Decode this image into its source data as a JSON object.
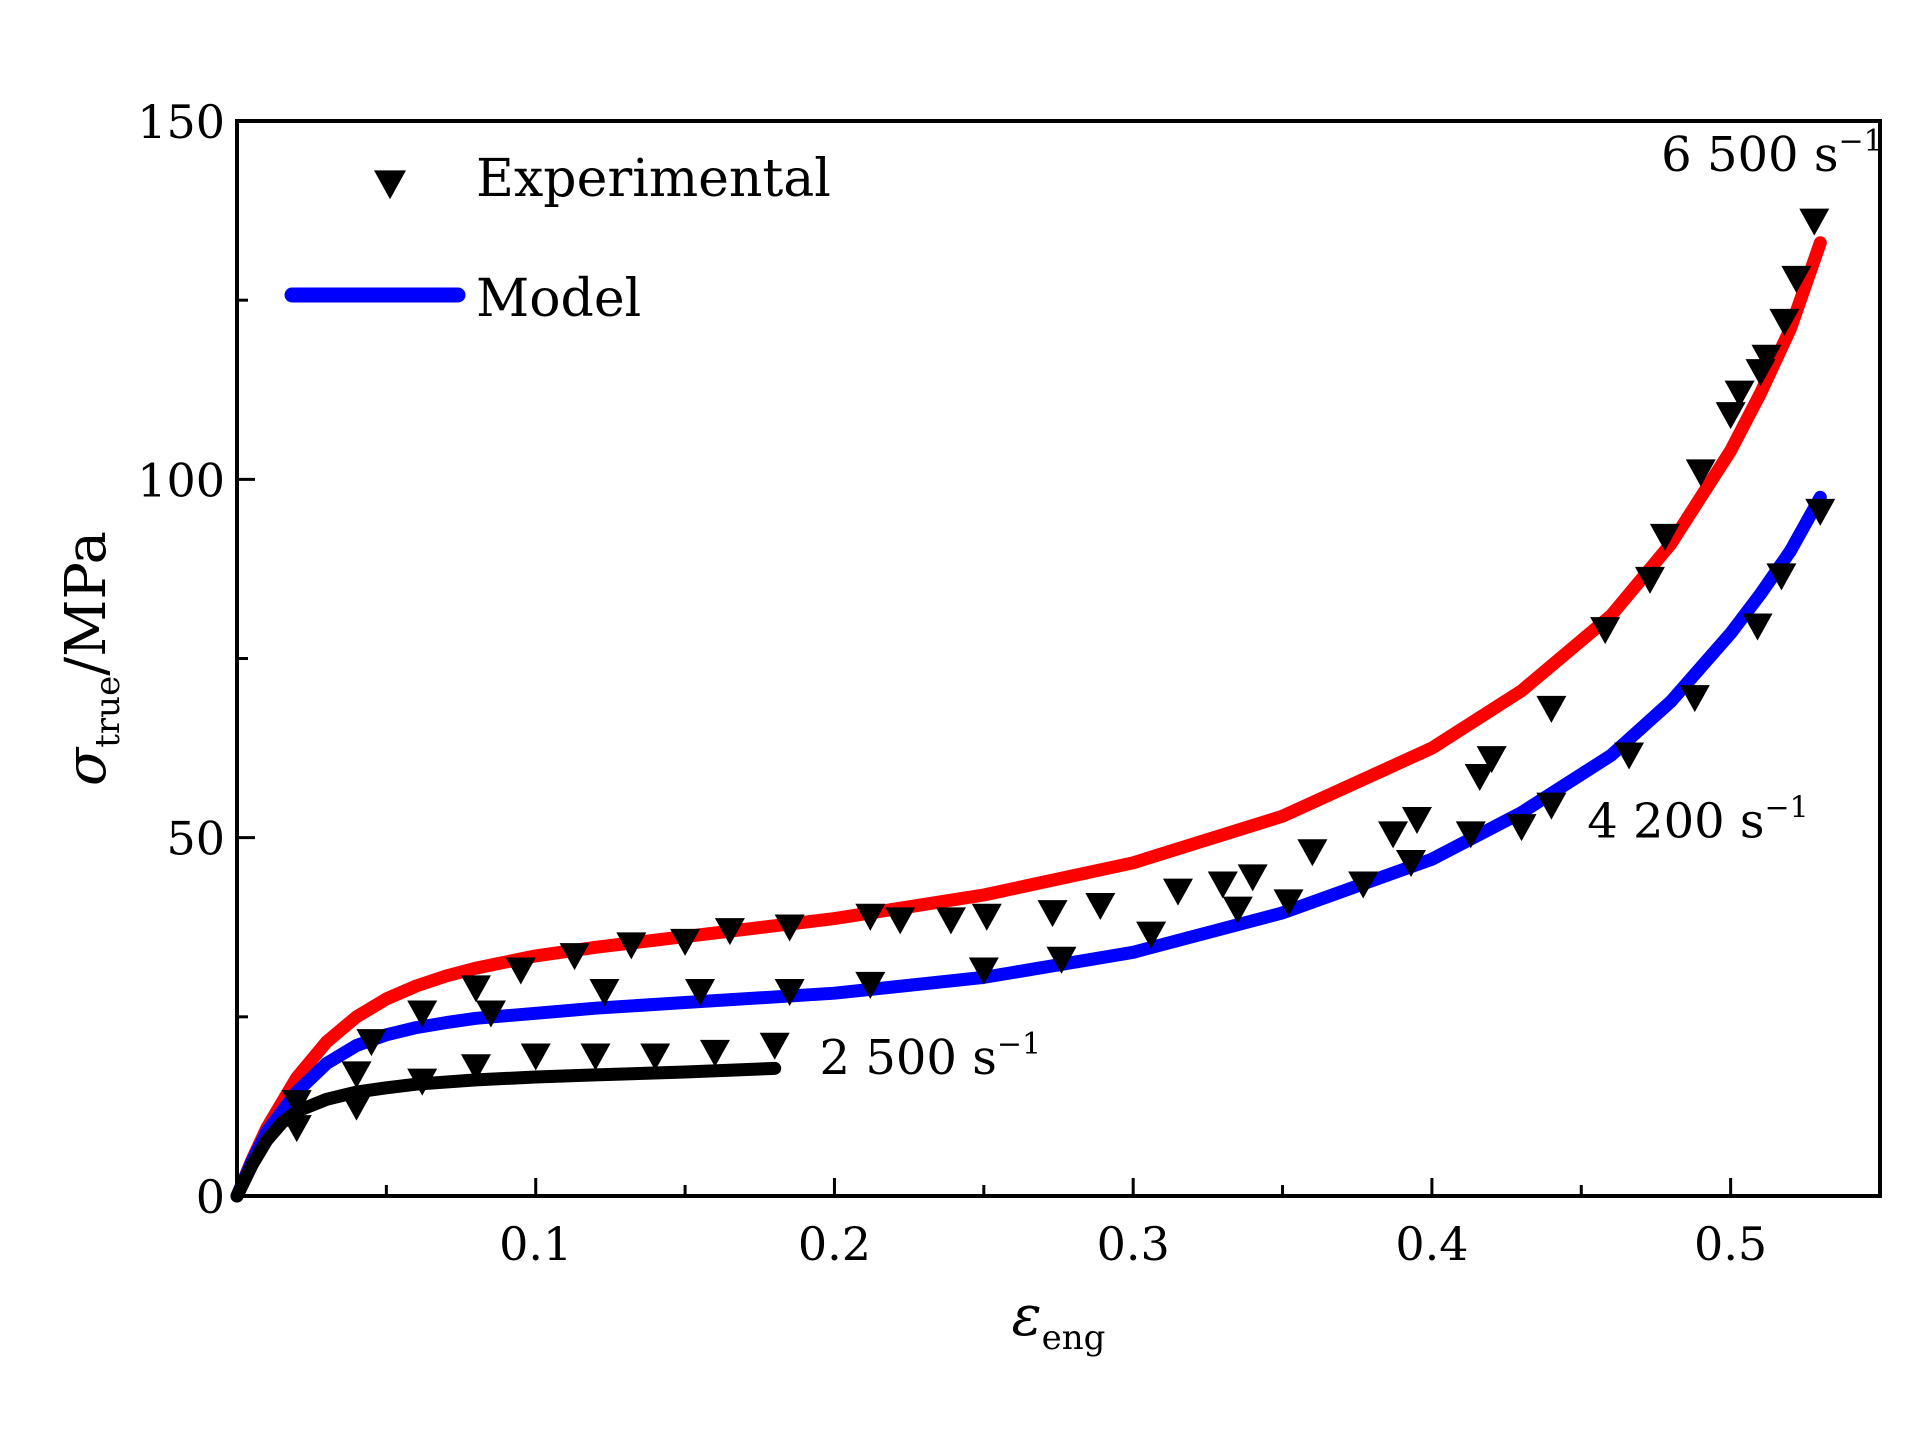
{
  "chart_data": {
    "type": "line",
    "xlabel": {
      "symbol": "ε",
      "sub": "eng"
    },
    "ylabel": {
      "symbol": "σ",
      "sub": "true",
      "unit": "/MPa"
    },
    "xlim": [
      0,
      0.55
    ],
    "ylim": [
      0,
      150
    ],
    "xticks": [
      0.1,
      0.2,
      0.3,
      0.4,
      0.5
    ],
    "xtick_labels": [
      "0.1",
      "0.2",
      "0.3",
      "0.4",
      "0.5"
    ],
    "yticks": [
      0,
      50,
      100,
      150
    ],
    "ytick_labels": [
      "0",
      "50",
      "100",
      "150"
    ],
    "grid": false,
    "legend": {
      "position": "top-left",
      "entries": [
        {
          "label": "Experimental",
          "marker": "triangle-down",
          "color": "#000000"
        },
        {
          "label": "Model",
          "line_color": "#0000ff"
        }
      ]
    },
    "annotations": [
      {
        "text": "6 500 s",
        "sup": "−1",
        "anchor": [
          0.537,
          143
        ]
      },
      {
        "text": "4 200 s",
        "sup": "−1",
        "anchor": [
          0.452,
          50
        ]
      },
      {
        "text": "2 500 s",
        "sup": "−1",
        "anchor": [
          0.195,
          17
        ]
      }
    ],
    "series": [
      {
        "kind": "model",
        "color": "#ff0000",
        "x": [
          0,
          0.005,
          0.01,
          0.02,
          0.03,
          0.04,
          0.05,
          0.06,
          0.07,
          0.08,
          0.1,
          0.12,
          0.15,
          0.2,
          0.25,
          0.3,
          0.35,
          0.4,
          0.43,
          0.46,
          0.48,
          0.5,
          0.51,
          0.52,
          0.53
        ],
        "y": [
          0,
          5,
          9.5,
          16.5,
          21.5,
          25,
          27.5,
          29.3,
          30.7,
          31.8,
          33.5,
          34.7,
          36.2,
          38.7,
          42,
          46.5,
          53,
          62.5,
          70.5,
          81,
          91,
          104,
          112,
          121,
          133
        ]
      },
      {
        "kind": "model",
        "color": "#0000ff",
        "x": [
          0,
          0.005,
          0.01,
          0.02,
          0.03,
          0.04,
          0.05,
          0.06,
          0.07,
          0.08,
          0.1,
          0.12,
          0.15,
          0.2,
          0.25,
          0.3,
          0.35,
          0.4,
          0.43,
          0.46,
          0.48,
          0.5,
          0.51,
          0.52,
          0.53
        ],
        "y": [
          0,
          4.8,
          9,
          14.5,
          18.5,
          21,
          22.5,
          23.5,
          24.2,
          24.8,
          25.5,
          26.2,
          27,
          28.3,
          30.5,
          34,
          39.5,
          47,
          53.5,
          61.5,
          69,
          78.5,
          84,
          90,
          97.5
        ]
      },
      {
        "kind": "model",
        "color": "#000000",
        "x": [
          0,
          0.005,
          0.01,
          0.015,
          0.02,
          0.03,
          0.04,
          0.05,
          0.06,
          0.08,
          0.1,
          0.12,
          0.15,
          0.18
        ],
        "y": [
          0,
          4.3,
          7.8,
          10.2,
          11.8,
          13.5,
          14.5,
          15.1,
          15.6,
          16.2,
          16.6,
          16.9,
          17.3,
          17.8
        ]
      },
      {
        "kind": "experimental",
        "rate": "6 500 s−1",
        "marker": "triangle-down",
        "x": [
          0.02,
          0.045,
          0.062,
          0.08,
          0.095,
          0.113,
          0.132,
          0.15,
          0.165,
          0.185,
          0.212,
          0.222,
          0.239,
          0.251,
          0.273,
          0.289,
          0.36,
          0.42,
          0.44,
          0.458,
          0.473,
          0.478,
          0.49,
          0.5,
          0.503,
          0.51,
          0.512,
          0.518,
          0.522,
          0.528
        ],
        "y": [
          13,
          21.5,
          25.5,
          29,
          31.5,
          33.5,
          35,
          35.5,
          37,
          37.5,
          39,
          38.5,
          38.5,
          39,
          39.5,
          40.5,
          48,
          61,
          68,
          79,
          86,
          92,
          101,
          109,
          112,
          115,
          117,
          122,
          128,
          136
        ]
      },
      {
        "kind": "experimental",
        "rate": "4 200 s−1",
        "marker": "triangle-down",
        "x": [
          0.04,
          0.085,
          0.123,
          0.155,
          0.185,
          0.212,
          0.25,
          0.276,
          0.306,
          0.315,
          0.33,
          0.335,
          0.34,
          0.352,
          0.377,
          0.387,
          0.393,
          0.395,
          0.413,
          0.416,
          0.43,
          0.44,
          0.466,
          0.488,
          0.509,
          0.517,
          0.53
        ],
        "y": [
          17,
          25.5,
          28.5,
          28.5,
          28.5,
          29.5,
          31.5,
          33,
          36.5,
          42.5,
          43.5,
          40,
          44.5,
          41,
          43.5,
          50.5,
          46.5,
          52.5,
          50.5,
          58.5,
          51.5,
          54.5,
          61.5,
          69.5,
          79.5,
          86.5,
          95.5
        ]
      },
      {
        "kind": "experimental",
        "rate": "2 500 s−1",
        "marker": "triangle-down",
        "x": [
          0.02,
          0.04,
          0.062,
          0.08,
          0.1,
          0.12,
          0.14,
          0.16,
          0.18
        ],
        "y": [
          9.5,
          12.5,
          16,
          18,
          19.5,
          19.5,
          19.5,
          20,
          21
        ]
      }
    ]
  }
}
